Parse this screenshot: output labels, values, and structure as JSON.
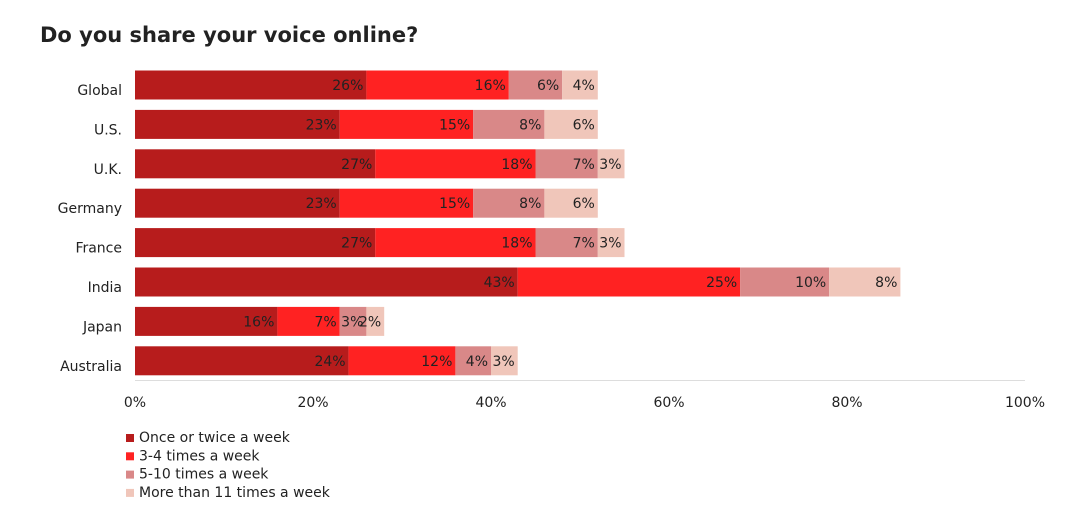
{
  "chart_data": {
    "type": "stacked-bar-horizontal",
    "title": "Do you share your voice online?",
    "categories": [
      "Global",
      "U.S.",
      "U.K.",
      "Germany",
      "France",
      "India",
      "Japan",
      "Australia"
    ],
    "series": [
      {
        "name": "Once or twice a week",
        "color": "#b71c1c",
        "values": [
          26,
          23,
          27,
          23,
          27,
          43,
          16,
          24
        ],
        "value_labels": [
          "26%",
          "23%",
          "27%",
          "23%",
          "27%",
          "43%",
          "16%",
          "24%"
        ]
      },
      {
        "name": "3-4 times a week",
        "color": "#ff2222",
        "values": [
          16,
          15,
          18,
          15,
          18,
          25,
          7,
          12
        ],
        "value_labels": [
          "16%",
          "15%",
          "18%",
          "15%",
          "18%",
          "25%",
          "7%",
          "12%"
        ]
      },
      {
        "name": "5-10 times a week",
        "color": "#d98888",
        "values": [
          6,
          8,
          7,
          8,
          7,
          10,
          3,
          4
        ],
        "value_labels": [
          "6%",
          "8%",
          "7%",
          "8%",
          "7%",
          "10%",
          "3%",
          "4%"
        ]
      },
      {
        "name": "More than 11 times a week",
        "color": "#f0c6ba",
        "values": [
          4,
          6,
          3,
          6,
          3,
          8,
          2,
          3
        ],
        "value_labels": [
          "4%",
          "6%",
          "3%",
          "6%",
          "3%",
          "8%",
          "2%",
          "3%"
        ]
      }
    ],
    "xlim": [
      0,
      100
    ],
    "xticks": [
      {
        "value": 0,
        "label": "0%"
      },
      {
        "value": 20,
        "label": "20%"
      },
      {
        "value": 40,
        "label": "40%"
      },
      {
        "value": 60,
        "label": "60%"
      },
      {
        "value": 80,
        "label": "80%"
      },
      {
        "value": 100,
        "label": "100%"
      }
    ],
    "legend": "bottom-left"
  }
}
